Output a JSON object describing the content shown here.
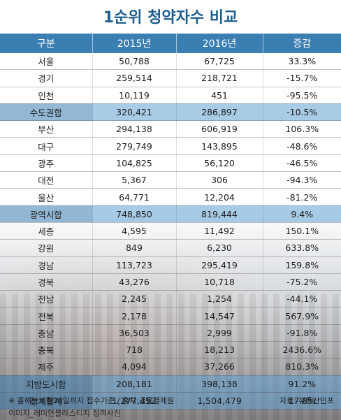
{
  "chart_data": {
    "type": "table",
    "title": "1순위 청약자수 비교",
    "columns": [
      "구분",
      "2015년",
      "2016년",
      "증감"
    ],
    "rows": [
      {
        "label": "서울",
        "v2015": "50,788",
        "v2016": "67,725",
        "change": "33.3%",
        "subtotal": false
      },
      {
        "label": "경기",
        "v2015": "259,514",
        "v2016": "218,721",
        "change": "-15.7%",
        "subtotal": false
      },
      {
        "label": "인천",
        "v2015": "10,119",
        "v2016": "451",
        "change": "-95.5%",
        "subtotal": false
      },
      {
        "label": "수도권합",
        "v2015": "320,421",
        "v2016": "286,897",
        "change": "-10.5%",
        "subtotal": true
      },
      {
        "label": "부산",
        "v2015": "294,138",
        "v2016": "606,919",
        "change": "106.3%",
        "subtotal": false
      },
      {
        "label": "대구",
        "v2015": "279,749",
        "v2016": "143,895",
        "change": "-48.6%",
        "subtotal": false
      },
      {
        "label": "광주",
        "v2015": "104,825",
        "v2016": "56,120",
        "change": "-46.5%",
        "subtotal": false
      },
      {
        "label": "대전",
        "v2015": "5,367",
        "v2016": "306",
        "change": "-94.3%",
        "subtotal": false
      },
      {
        "label": "울산",
        "v2015": "64,771",
        "v2016": "12,204",
        "change": "-81.2%",
        "subtotal": false
      },
      {
        "label": "광역시합",
        "v2015": "748,850",
        "v2016": "819,444",
        "change": "9.4%",
        "subtotal": true
      },
      {
        "label": "세종",
        "v2015": "4,595",
        "v2016": "11,492",
        "change": "150.1%",
        "subtotal": false
      },
      {
        "label": "강원",
        "v2015": "849",
        "v2016": "6,230",
        "change": "633.8%",
        "subtotal": false
      },
      {
        "label": "경남",
        "v2015": "113,723",
        "v2016": "295,419",
        "change": "159.8%",
        "subtotal": false
      },
      {
        "label": "경북",
        "v2015": "43,276",
        "v2016": "10,718",
        "change": "-75.2%",
        "subtotal": false
      },
      {
        "label": "전남",
        "v2015": "2,245",
        "v2016": "1,254",
        "change": "-44.1%",
        "subtotal": false
      },
      {
        "label": "전북",
        "v2015": "2,178",
        "v2016": "14,547",
        "change": "567.9%",
        "subtotal": false
      },
      {
        "label": "충남",
        "v2015": "36,503",
        "v2016": "2,999",
        "change": "-91.8%",
        "subtotal": false
      },
      {
        "label": "충북",
        "v2015": "718",
        "v2016": "18,213",
        "change": "2436.6%",
        "subtotal": false
      },
      {
        "label": "제주",
        "v2015": "4,094",
        "v2016": "37,266",
        "change": "810.3%",
        "subtotal": false
      },
      {
        "label": "지방도시합",
        "v2015": "208,181",
        "v2016": "398,138",
        "change": "91.2%",
        "subtotal": true
      },
      {
        "label": "전체합계",
        "v2015": "1,277,452",
        "v2016": "1,504,479",
        "change": "17.8%",
        "subtotal": true
      }
    ]
  },
  "footnote": "※ 올해는 6월28일까지 접수기준 / 출처:금융결제원",
  "credit": "이미지_래미안블레스티지 집객사진",
  "source": "자료: 부동산인포",
  "colors": {
    "header": "#3a7eb2",
    "subtotal": "#60a0d2",
    "title": "#1f5f8e"
  }
}
